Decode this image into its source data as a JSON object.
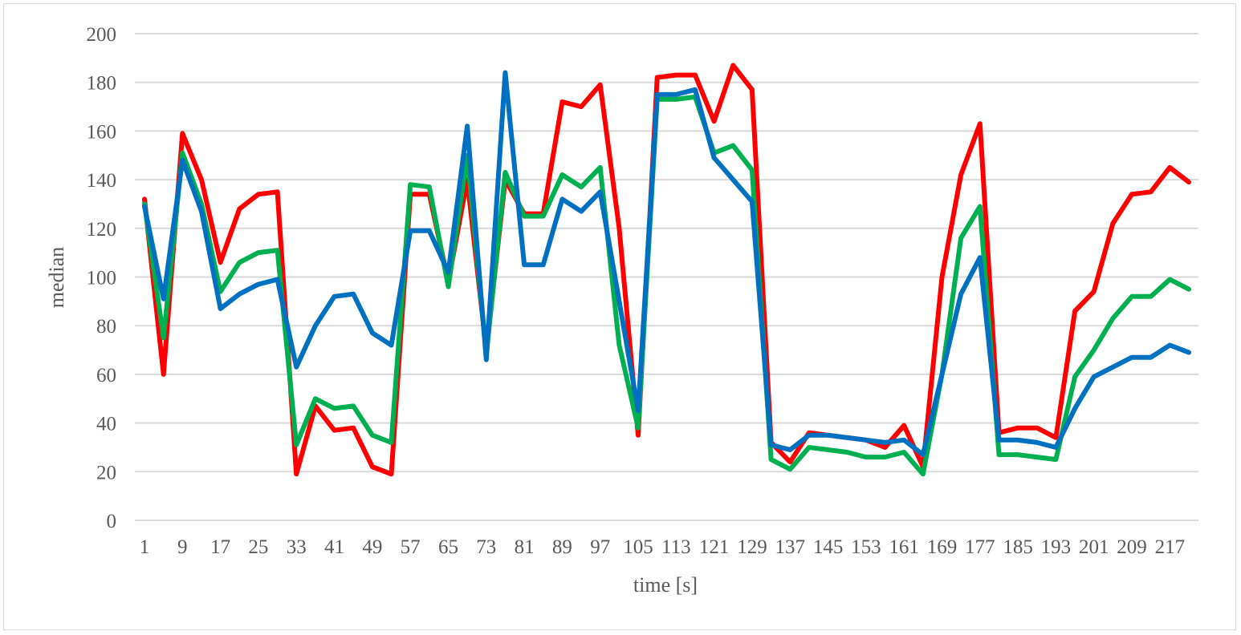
{
  "chart_data": {
    "type": "line",
    "xlabel": "time [s]",
    "ylabel": "median",
    "ylim": [
      0,
      200
    ],
    "yticks": [
      "0",
      "20",
      "40",
      "60",
      "80",
      "100",
      "120",
      "140",
      "160",
      "180",
      "200"
    ],
    "xtick_labels": [
      "1",
      "9",
      "17",
      "25",
      "33",
      "41",
      "49",
      "57",
      "65",
      "73",
      "81",
      "89",
      "97",
      "105",
      "113",
      "121",
      "129",
      "137",
      "145",
      "153",
      "161",
      "169",
      "177",
      "185",
      "193",
      "201",
      "209",
      "217"
    ],
    "x": [
      1,
      5,
      9,
      13,
      17,
      21,
      25,
      29,
      33,
      37,
      41,
      45,
      49,
      53,
      57,
      61,
      65,
      69,
      73,
      77,
      81,
      85,
      89,
      93,
      97,
      101,
      105,
      109,
      113,
      117,
      121,
      125,
      129,
      133,
      137,
      141,
      145,
      149,
      153,
      157,
      161,
      165,
      169,
      173,
      177,
      181,
      185,
      189,
      193,
      197,
      201,
      205,
      209,
      213,
      217,
      221
    ],
    "grid": true,
    "legend": "none",
    "series": [
      {
        "color": "#ff0000",
        "values": [
          132,
          60,
          159,
          140,
          106,
          128,
          134,
          135,
          19,
          47,
          37,
          38,
          22,
          19,
          134,
          134,
          98,
          140,
          70,
          140,
          126,
          126,
          172,
          170,
          179,
          120,
          35,
          182,
          183,
          183,
          164,
          187,
          177,
          32,
          24,
          36,
          35,
          34,
          33,
          30,
          39,
          22,
          100,
          142,
          163,
          36,
          38,
          38,
          34,
          86,
          94,
          122,
          134,
          135,
          145,
          139
        ]
      },
      {
        "color": "#00b050",
        "values": [
          130,
          75,
          151,
          130,
          94,
          106,
          110,
          111,
          31,
          50,
          46,
          47,
          35,
          32,
          138,
          137,
          96,
          150,
          68,
          143,
          125,
          125,
          142,
          137,
          145,
          72,
          38,
          173,
          173,
          174,
          151,
          154,
          144,
          25,
          21,
          30,
          29,
          28,
          26,
          26,
          28,
          19,
          60,
          116,
          129,
          27,
          27,
          26,
          25,
          59,
          70,
          83,
          92,
          92,
          99,
          95
        ]
      },
      {
        "color": "#0070c0",
        "values": [
          129,
          91,
          148,
          127,
          87,
          93,
          97,
          99,
          63,
          80,
          92,
          93,
          77,
          72,
          119,
          119,
          102,
          162,
          66,
          184,
          105,
          105,
          132,
          127,
          135,
          90,
          45,
          175,
          175,
          177,
          149,
          140,
          131,
          31,
          29,
          35,
          35,
          34,
          33,
          32,
          33,
          27,
          60,
          93,
          108,
          33,
          33,
          32,
          30,
          46,
          59,
          63,
          67,
          67,
          72,
          69
        ]
      }
    ]
  }
}
